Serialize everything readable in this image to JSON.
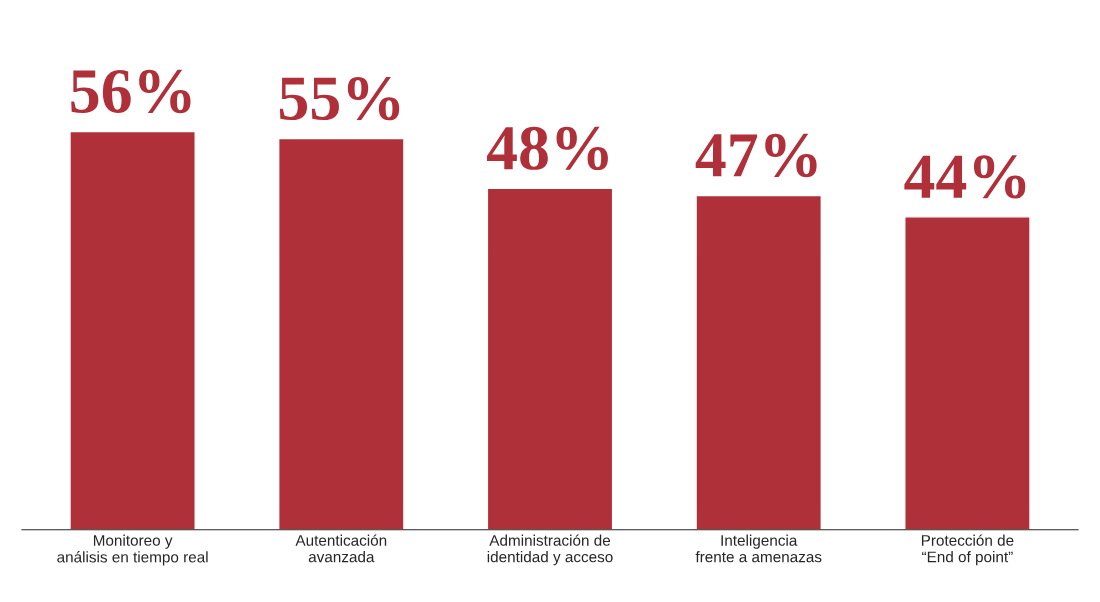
{
  "chart_data": {
    "type": "bar",
    "relative": false,
    "categories": [
      "Monitoreo y\nanálisis en tiempo real",
      "Autenticación\navanzada",
      "Administración de\nidentidad y acceso",
      "Inteligencia\nfrente a amenazas",
      "Protección de\n“End of point”"
    ],
    "values": [
      56,
      55,
      48,
      47,
      44
    ],
    "value_labels": [
      "56%",
      "55%",
      "48%",
      "47%",
      "44%"
    ],
    "color": "#b0303a",
    "grid": false,
    "legend": false
  }
}
